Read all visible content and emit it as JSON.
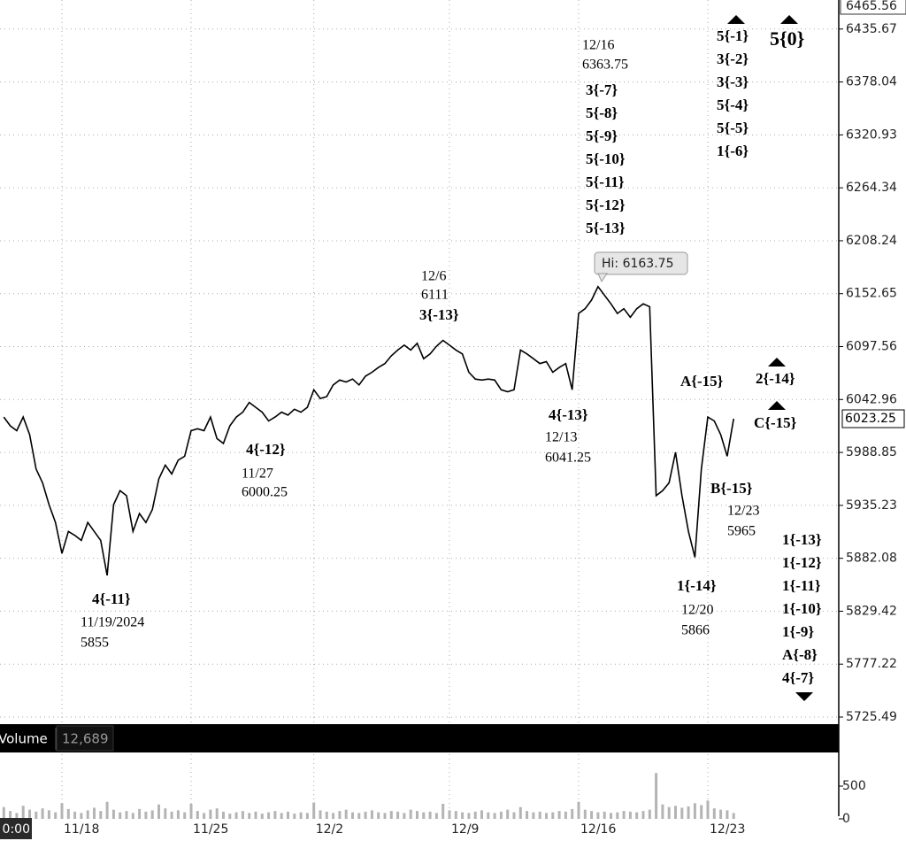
{
  "chart_data": {
    "type": "line",
    "log_scale": true,
    "grid": true,
    "color": "#000000",
    "ylim": [
      5725.49,
      6465.56
    ],
    "yticks": [
      6435.67,
      6378.04,
      6320.93,
      6264.34,
      6208.24,
      6152.65,
      6097.56,
      6042.96,
      5988.85,
      5935.23,
      5882.08,
      5829.42,
      5777.22,
      5725.49
    ],
    "categories": [
      "0:00",
      null,
      null,
      null,
      null,
      null,
      null,
      null,
      null,
      "11/18",
      null,
      null,
      null,
      null,
      null,
      null,
      null,
      null,
      null,
      null,
      null,
      null,
      null,
      null,
      null,
      null,
      null,
      null,
      null,
      "11/25",
      null,
      null,
      null,
      null,
      null,
      null,
      null,
      null,
      null,
      null,
      null,
      null,
      null,
      null,
      null,
      null,
      null,
      null,
      "12/2",
      null,
      null,
      null,
      null,
      null,
      null,
      null,
      null,
      null,
      null,
      null,
      null,
      null,
      null,
      null,
      null,
      null,
      null,
      null,
      null,
      "12/9",
      null,
      null,
      null,
      null,
      null,
      null,
      null,
      null,
      null,
      null,
      null,
      null,
      null,
      null,
      null,
      null,
      null,
      null,
      null,
      "12/16",
      null,
      null,
      null,
      null,
      null,
      null,
      null,
      null,
      null,
      null,
      null,
      null,
      null,
      null,
      null,
      null,
      null,
      null,
      null,
      "12/23",
      null,
      null,
      null,
      null
    ],
    "values": [
      6025,
      6016,
      6011,
      6025,
      6007,
      5972,
      5958,
      5936,
      5918,
      5887,
      5909,
      5905,
      5900,
      5918,
      5909,
      5900,
      5865,
      5936,
      5950,
      5945,
      5909,
      5927,
      5918,
      5931,
      5962,
      5976,
      5967,
      5981,
      5985,
      6011,
      6013,
      6011,
      6025,
      6003,
      5998,
      6016,
      6025,
      6030,
      6040,
      6035,
      6030,
      6021,
      6025,
      6030,
      6027,
      6033,
      6030,
      6035,
      6053,
      6044,
      6046,
      6058,
      6063,
      6061,
      6064,
      6058,
      6067,
      6071,
      6076,
      6080,
      6088,
      6094,
      6099,
      6094,
      6101,
      6085,
      6090,
      6098,
      6104,
      6099,
      6094,
      6090,
      6071,
      6064,
      6063,
      6064,
      6063,
      6053,
      6051,
      6053,
      6094,
      6090,
      6085,
      6080,
      6082,
      6071,
      6076,
      6080,
      6053,
      6132,
      6137,
      6146,
      6160,
      6151,
      6142,
      6132,
      6137,
      6128,
      6137,
      6142,
      6139,
      5945,
      5950,
      5958,
      5989,
      5945,
      5909,
      5883,
      5972,
      6025,
      6021,
      6007,
      5985,
      6023.25
    ],
    "high_label": "Hi: 6163.75",
    "volume": {
      "label": "Volume",
      "readout": "12,689",
      "color": "#b4b4b4",
      "ylim": [
        0,
        1000
      ],
      "yticks": [
        0,
        500
      ],
      "values": [
        180,
        120,
        90,
        200,
        140,
        110,
        160,
        130,
        100,
        240,
        150,
        110,
        90,
        130,
        170,
        120,
        260,
        140,
        100,
        120,
        90,
        150,
        110,
        130,
        220,
        160,
        110,
        130,
        100,
        230,
        120,
        90,
        140,
        160,
        110,
        80,
        100,
        120,
        90,
        110,
        80,
        100,
        120,
        90,
        110,
        80,
        100,
        90,
        250,
        130,
        110,
        90,
        120,
        140,
        100,
        90,
        110,
        130,
        100,
        90,
        120,
        110,
        90,
        140,
        120,
        100,
        110,
        90,
        230,
        130,
        120,
        100,
        90,
        110,
        130,
        100,
        90,
        110,
        140,
        100,
        180,
        120,
        100,
        110,
        90,
        100,
        120,
        110,
        150,
        260,
        140,
        120,
        100,
        110,
        90,
        100,
        120,
        110,
        100,
        120,
        140,
        700,
        220,
        180,
        200,
        170,
        190,
        240,
        210,
        280,
        160,
        140,
        130,
        90
      ]
    },
    "annotations": [
      {
        "lines": [
          "4{-11}",
          "11/19/2024",
          "5855"
        ]
      },
      {
        "lines": [
          "4{-12}",
          "11/27",
          "6000.25"
        ]
      },
      {
        "lines": [
          "12/6",
          "6111",
          "3{-13}"
        ]
      },
      {
        "lines": [
          "4{-13}",
          "12/13",
          "6041.25"
        ]
      },
      {
        "lines": [
          "12/16",
          "6363.75",
          "3{-7}",
          "5{-8}",
          "5{-9}",
          "5{-10}",
          "5{-11}",
          "5{-12}",
          "5{-13}"
        ]
      },
      {
        "lines": [
          "5{-1}",
          "3{-2}",
          "3{-3}",
          "5{-4}",
          "5{-5}",
          "1{-6}"
        ]
      },
      {
        "lines": [
          "5{0}"
        ]
      },
      {
        "lines": [
          "A{-15}"
        ]
      },
      {
        "lines": [
          "1{-14}",
          "12/20",
          "5866"
        ]
      },
      {
        "lines": [
          "B{-15}",
          "12/23",
          "5965"
        ]
      },
      {
        "lines": [
          "2{-14}"
        ]
      },
      {
        "lines": [
          "C{-15}"
        ]
      },
      {
        "lines": [
          "1{-13}",
          "1{-12}",
          "1{-11}",
          "1{-10}",
          "1{-9}",
          "A{-8}",
          "4{-7}"
        ]
      }
    ]
  }
}
